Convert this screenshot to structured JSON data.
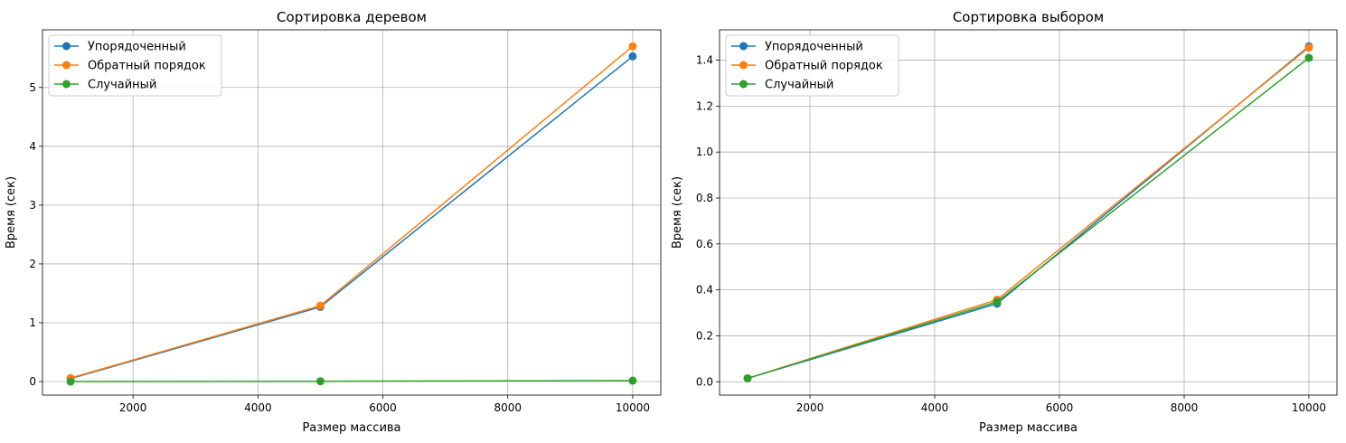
{
  "chart_data": [
    {
      "type": "line",
      "title": "Сортировка деревом",
      "xlabel": "Размер массива",
      "ylabel": "Время (сек)",
      "x": [
        1000,
        5000,
        10000
      ],
      "xlim": [
        550,
        10450
      ],
      "ylim": [
        -0.23,
        5.98
      ],
      "xticks": [
        2000,
        4000,
        6000,
        8000,
        10000
      ],
      "yticks": [
        0,
        1,
        2,
        3,
        4,
        5
      ],
      "grid": true,
      "legend_position": "top-left",
      "series": [
        {
          "name": "Упорядоченный",
          "color": "#1f77b4",
          "values": [
            0.05,
            1.27,
            5.53
          ]
        },
        {
          "name": "Обратный порядок",
          "color": "#ff7f0e",
          "values": [
            0.06,
            1.29,
            5.7
          ]
        },
        {
          "name": "Случайный",
          "color": "#2ca02c",
          "values": [
            0.0,
            0.005,
            0.015
          ]
        }
      ]
    },
    {
      "type": "line",
      "title": "Сортировка выбором",
      "xlabel": "Размер массива",
      "ylabel": "Время (сек)",
      "x": [
        1000,
        5000,
        10000
      ],
      "xlim": [
        550,
        10450
      ],
      "ylim": [
        -0.058,
        1.532
      ],
      "xticks": [
        2000,
        4000,
        6000,
        8000,
        10000
      ],
      "yticks": [
        0.0,
        0.2,
        0.4,
        0.6,
        0.8,
        1.0,
        1.2,
        1.4
      ],
      "ytick_decimals": 1,
      "grid": true,
      "legend_position": "top-left",
      "series": [
        {
          "name": "Упорядоченный",
          "color": "#1f77b4",
          "values": [
            0.015,
            0.34,
            1.46
          ]
        },
        {
          "name": "Обратный порядок",
          "color": "#ff7f0e",
          "values": [
            0.015,
            0.357,
            1.455
          ]
        },
        {
          "name": "Случайный",
          "color": "#2ca02c",
          "values": [
            0.015,
            0.348,
            1.41
          ]
        }
      ]
    }
  ]
}
